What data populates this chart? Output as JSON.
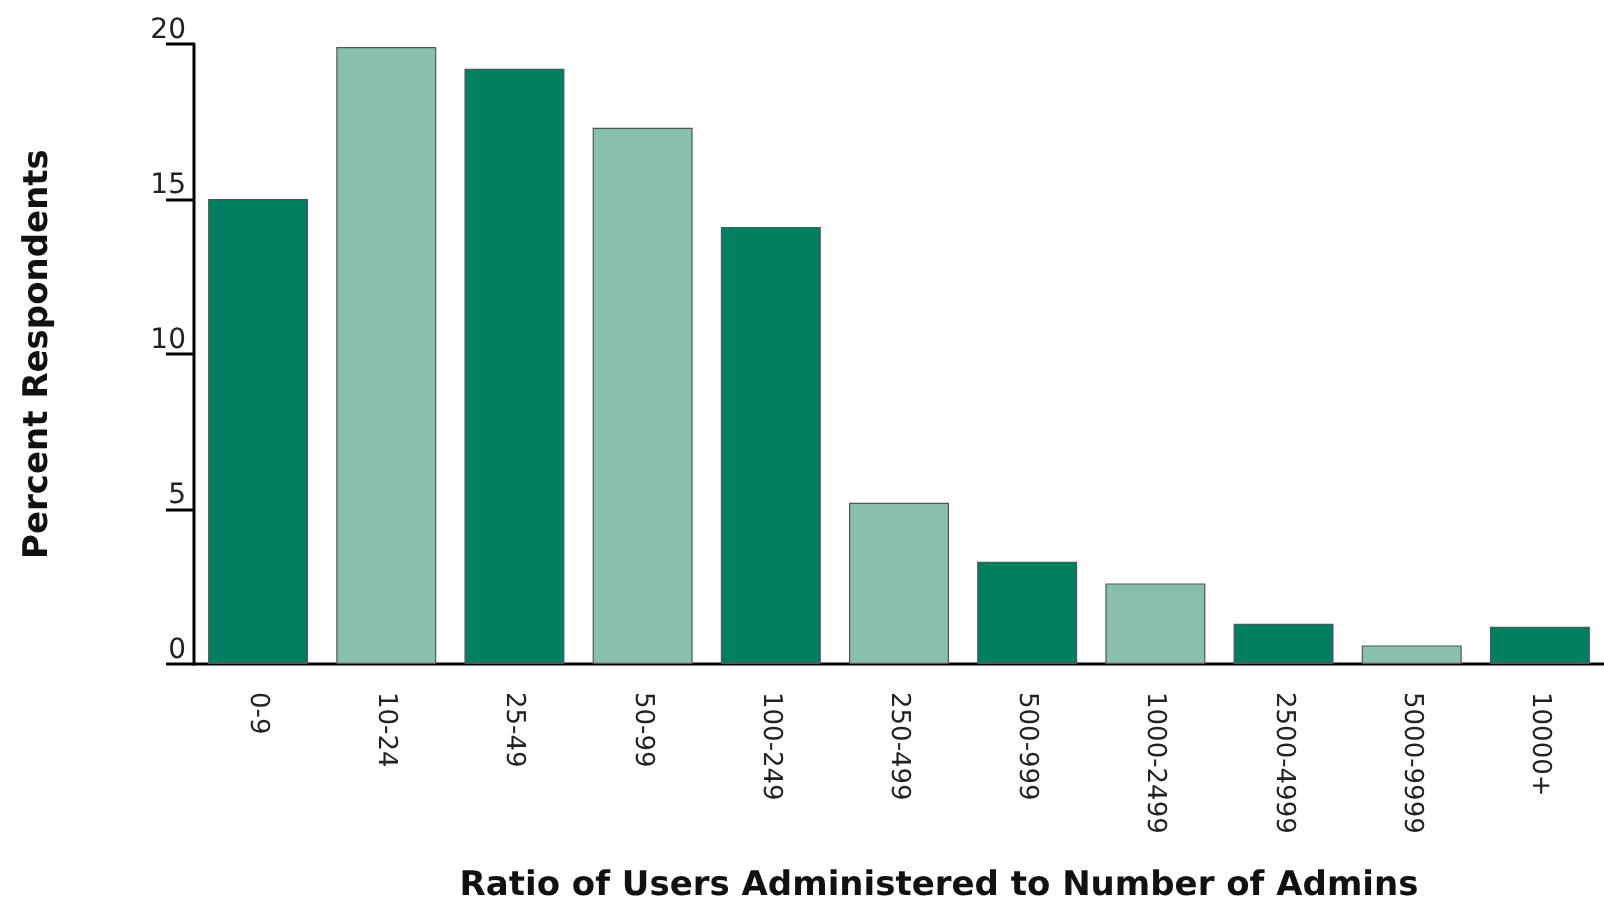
{
  "chart_data": {
    "type": "bar",
    "xlabel": "Ratio of Users Administered to Number of Admins",
    "ylabel": "Percent Respondents",
    "categories": [
      "0-9",
      "10-24",
      "25-49",
      "50-99",
      "100-249",
      "250-499",
      "500-999",
      "1000-2499",
      "2500-4999",
      "5000-9999",
      "10000+"
    ],
    "values": [
      15.0,
      19.9,
      19.2,
      17.3,
      14.1,
      5.2,
      3.3,
      2.6,
      1.3,
      0.6,
      1.2
    ],
    "colors": [
      "#008060",
      "#88c0ac",
      "#008060",
      "#88c0ac",
      "#008060",
      "#88c0ac",
      "#008060",
      "#88c0ac",
      "#008060",
      "#88c0ac",
      "#008060"
    ],
    "ylim": [
      0,
      20
    ],
    "yticks": [
      0,
      5,
      10,
      15,
      20
    ],
    "grid": false
  }
}
